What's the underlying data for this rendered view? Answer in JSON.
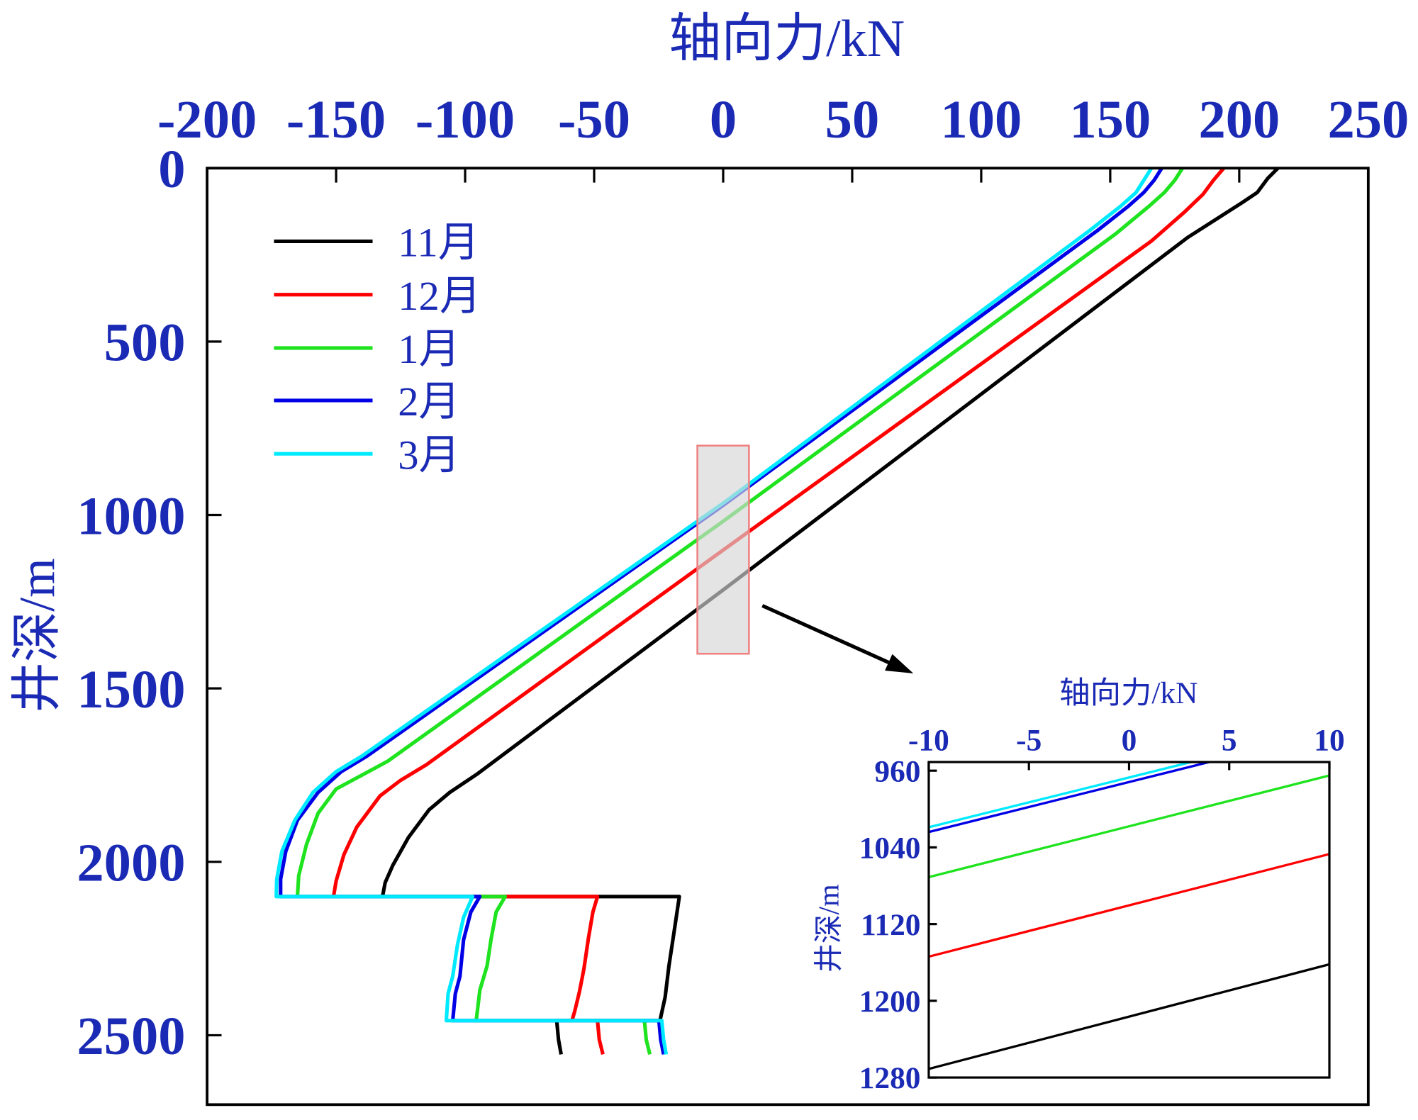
{
  "chart_data": [
    {
      "type": "line",
      "xlabel": "轴向力/kN",
      "ylabel": "井深/m",
      "xlim": [
        -200,
        250
      ],
      "ylim": [
        0,
        2700
      ],
      "y_inverted": true,
      "x_axis_position": "top",
      "xticks": [
        -200,
        -150,
        -100,
        -50,
        0,
        50,
        100,
        150,
        200,
        250
      ],
      "yticks": [
        0,
        500,
        1000,
        1500,
        2000,
        2500
      ],
      "grid": false,
      "legend": "top-left",
      "text_color": "#1a2ab4",
      "series": [
        {
          "name": "11月",
          "color": "#000000",
          "points": [
            [
              215,
              0
            ],
            [
              211,
              30
            ],
            [
              207,
              70
            ],
            [
              201,
              100
            ],
            [
              180,
              200
            ],
            [
              0,
              1216
            ],
            [
              -95,
              1745
            ],
            [
              -106,
              1800
            ],
            [
              -114,
              1850
            ],
            [
              -122,
              1930
            ],
            [
              -128,
              2010
            ],
            [
              -131,
              2060
            ],
            [
              -132,
              2100
            ],
            [
              -17,
              2100
            ],
            [
              -19,
              2200
            ],
            [
              -21,
              2300
            ],
            [
              -22.5,
              2390
            ],
            [
              -24.5,
              2458
            ],
            [
              -64.5,
              2458
            ],
            [
              -63.8,
              2513
            ],
            [
              -62.8,
              2555
            ]
          ]
        },
        {
          "name": "12月",
          "color": "#ff0000",
          "points": [
            [
              194,
              0
            ],
            [
              190,
              35
            ],
            [
              186,
              75
            ],
            [
              179,
              125
            ],
            [
              166,
              210
            ],
            [
              0,
              1101
            ],
            [
              -115,
              1720
            ],
            [
              -125,
              1765
            ],
            [
              -133,
              1810
            ],
            [
              -142,
              1900
            ],
            [
              -147,
              1980
            ],
            [
              -150,
              2055
            ],
            [
              -151,
              2100
            ],
            [
              -48.7,
              2100
            ],
            [
              -50.5,
              2145
            ],
            [
              -52.2,
              2220
            ],
            [
              -54,
              2310
            ],
            [
              -55.7,
              2375
            ],
            [
              -57.5,
              2430
            ],
            [
              -58.6,
              2458
            ],
            [
              -48.7,
              2458
            ],
            [
              -48,
              2513
            ],
            [
              -46.6,
              2555
            ]
          ]
        },
        {
          "name": "1月",
          "color": "#1ee31e",
          "points": [
            [
              178,
              0
            ],
            [
              175,
              35
            ],
            [
              171,
              70
            ],
            [
              165,
              110
            ],
            [
              152,
              190
            ],
            [
              0,
              1018
            ],
            [
              -130,
              1710
            ],
            [
              -140,
              1750
            ],
            [
              -150,
              1790
            ],
            [
              -157,
              1860
            ],
            [
              -161.5,
              1950
            ],
            [
              -164.5,
              2040
            ],
            [
              -165,
              2100
            ],
            [
              -84.5,
              2100
            ],
            [
              -88,
              2145
            ],
            [
              -90,
              2225
            ],
            [
              -91.5,
              2300
            ],
            [
              -94.3,
              2370
            ],
            [
              -95.7,
              2458
            ],
            [
              -30.5,
              2458
            ],
            [
              -29.8,
              2513
            ],
            [
              -28.4,
              2555
            ]
          ]
        },
        {
          "name": "2月",
          "color": "#0000e6",
          "points": [
            [
              170,
              0
            ],
            [
              167,
              35
            ],
            [
              163,
              70
            ],
            [
              157,
              110
            ],
            [
              145,
              180
            ],
            [
              0,
              972
            ],
            [
              -138,
              1695
            ],
            [
              -148,
              1740
            ],
            [
              -157,
              1800
            ],
            [
              -165,
              1880
            ],
            [
              -169.5,
              1970
            ],
            [
              -171.5,
              2050
            ],
            [
              -171.5,
              2100
            ],
            [
              -94.3,
              2100
            ],
            [
              -97.8,
              2145
            ],
            [
              -100.6,
              2225
            ],
            [
              -102,
              2330
            ],
            [
              -103.8,
              2380
            ],
            [
              -104.8,
              2458
            ],
            [
              -24.9,
              2458
            ],
            [
              -24.2,
              2513
            ],
            [
              -23.1,
              2555
            ]
          ]
        },
        {
          "name": "3月",
          "color": "#00eaff",
          "points": [
            [
              166,
              0
            ],
            [
              163,
              35
            ],
            [
              160,
              70
            ],
            [
              154,
              110
            ],
            [
              142,
              180
            ],
            [
              0,
              966
            ],
            [
              -140,
              1695
            ],
            [
              -150,
              1740
            ],
            [
              -159,
              1800
            ],
            [
              -166,
              1880
            ],
            [
              -171,
              1970
            ],
            [
              -173,
              2050
            ],
            [
              -173.2,
              2100
            ],
            [
              -97.1,
              2100
            ],
            [
              -100.6,
              2160
            ],
            [
              -103,
              2240
            ],
            [
              -104.8,
              2330
            ],
            [
              -106.6,
              2380
            ],
            [
              -107.3,
              2458
            ],
            [
              -23.8,
              2458
            ],
            [
              -23.1,
              2513
            ],
            [
              -22.1,
              2555
            ]
          ]
        }
      ],
      "zoom_box": {
        "xlim": [
          -10,
          10
        ],
        "ylim": [
          800,
          1400
        ]
      }
    },
    {
      "type": "line",
      "xlabel": "轴向力/kN",
      "ylabel": "井深/m",
      "xlim": [
        -10,
        10
      ],
      "ylim": [
        951,
        1280
      ],
      "y_inverted": true,
      "x_axis_position": "top",
      "xticks": [
        -10,
        -5,
        0,
        5,
        10
      ],
      "yticks": [
        960,
        1040,
        1120,
        1200,
        1280
      ],
      "grid": false,
      "series": [
        {
          "color": "#000000",
          "points": [
            [
              -10,
              1271
            ],
            [
              10,
              1162
            ]
          ]
        },
        {
          "color": "#ff0000",
          "points": [
            [
              -10,
              1154
            ],
            [
              10,
              1047
            ]
          ]
        },
        {
          "color": "#1ee31e",
          "points": [
            [
              -10,
              1071
            ],
            [
              10,
              965
            ]
          ]
        },
        {
          "color": "#0000e6",
          "points": [
            [
              -10,
              1024
            ],
            [
              4,
              951
            ]
          ]
        },
        {
          "color": "#00eaff",
          "points": [
            [
              -10,
              1019
            ],
            [
              3.1,
              951
            ]
          ]
        }
      ]
    }
  ]
}
